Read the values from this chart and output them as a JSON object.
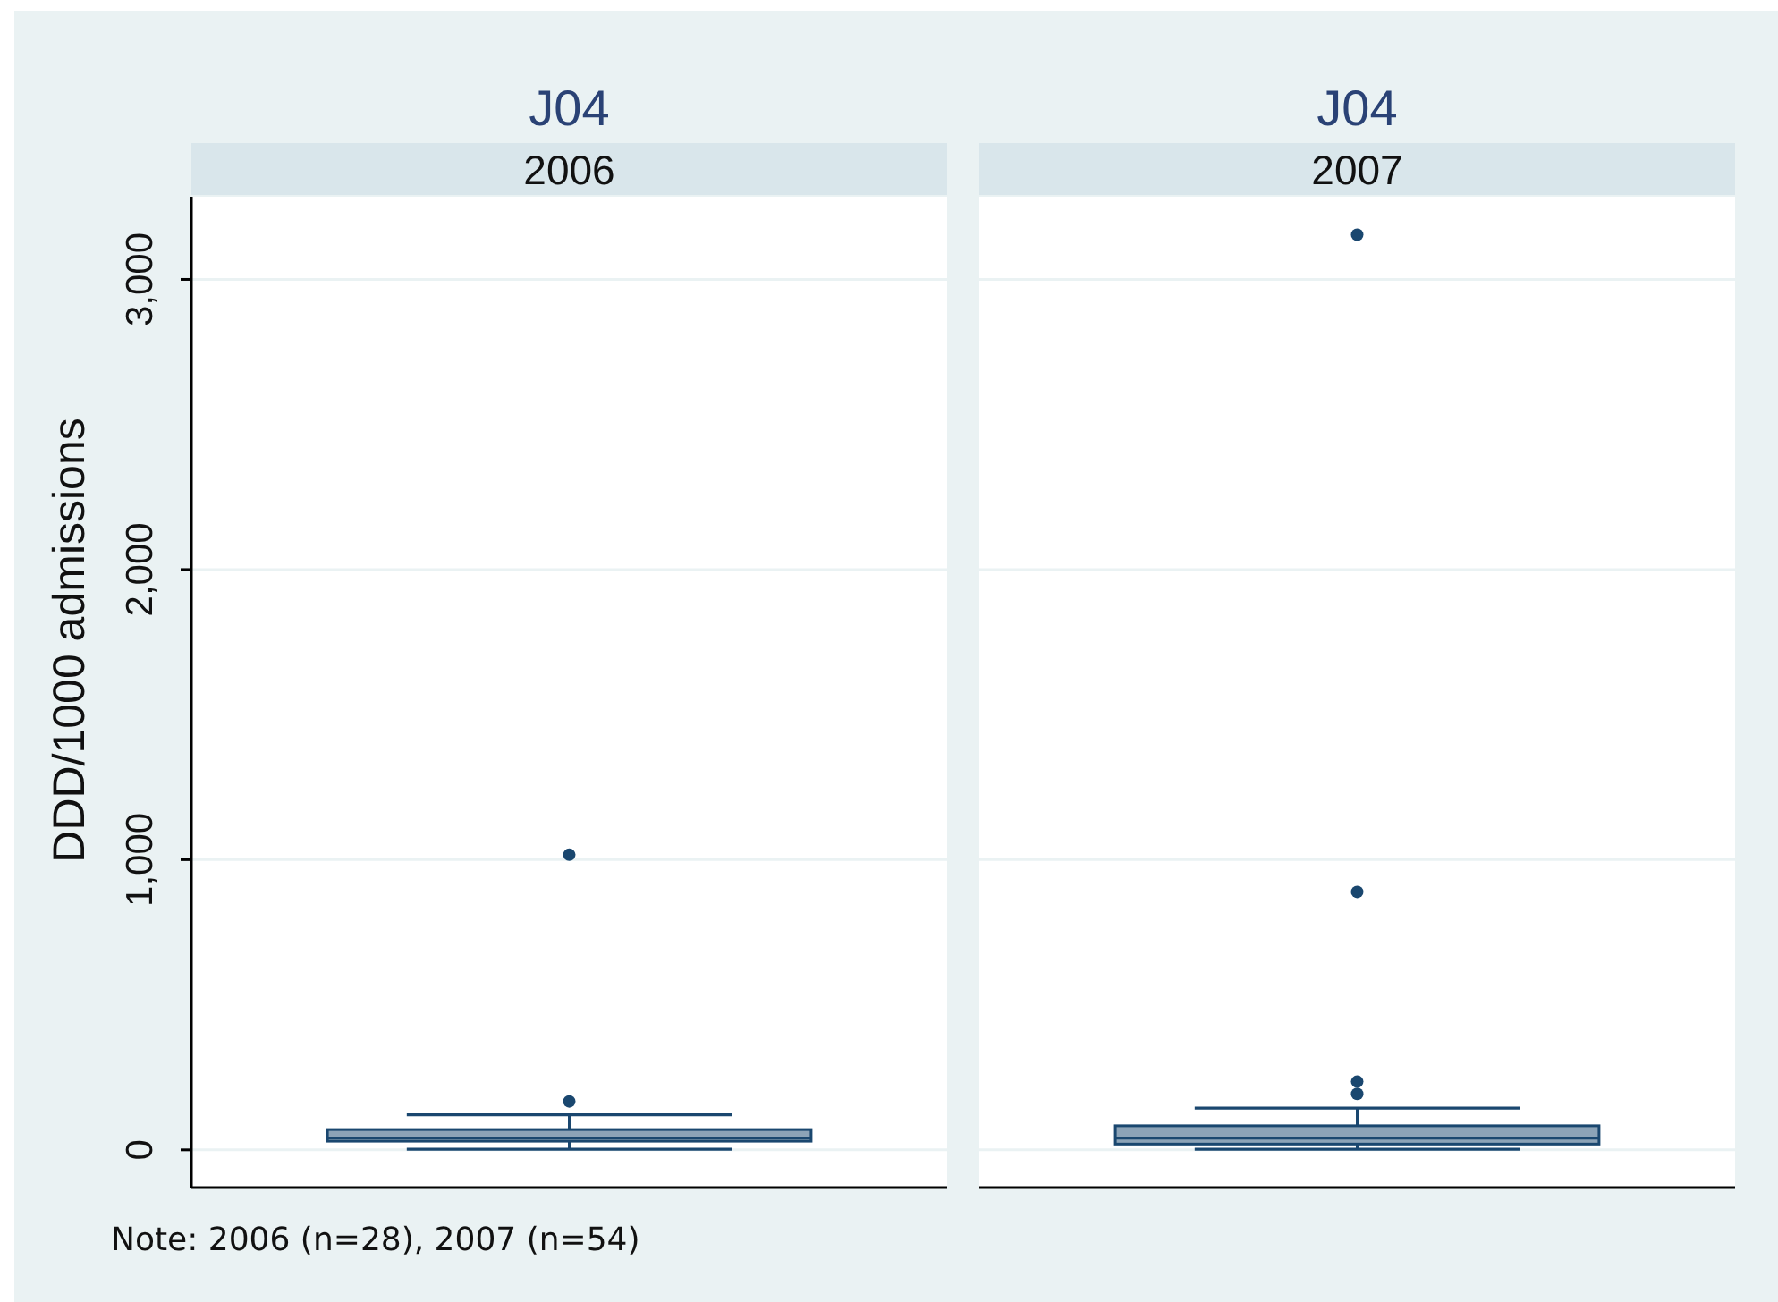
{
  "chart_data": {
    "type": "box",
    "title": "J04",
    "categories": [
      "2006",
      "2007"
    ],
    "color": "#1a476f",
    "boxes": [
      {
        "low": 2,
        "q1": 30,
        "median": 40,
        "q3": 70,
        "high": 121,
        "outliers": [
          167,
          1017
        ]
      },
      {
        "low": 2,
        "q1": 20,
        "median": 39,
        "q3": 83,
        "high": 144,
        "outliers": [
          193,
          235,
          889,
          3154
        ]
      }
    ],
    "ylabel": "DDD/1000 admissions",
    "ylim": [
      -130,
      3285
    ],
    "yticks": [
      0,
      {
        "value": 1000,
        "label": "1,000"
      },
      {
        "value": 2000,
        "label": "2,000"
      },
      {
        "value": 3000,
        "label": "3,000"
      }
    ],
    "grid": "y",
    "annotations": [
      "Note: 2006 (n=28), 2007 (n=54)"
    ]
  }
}
